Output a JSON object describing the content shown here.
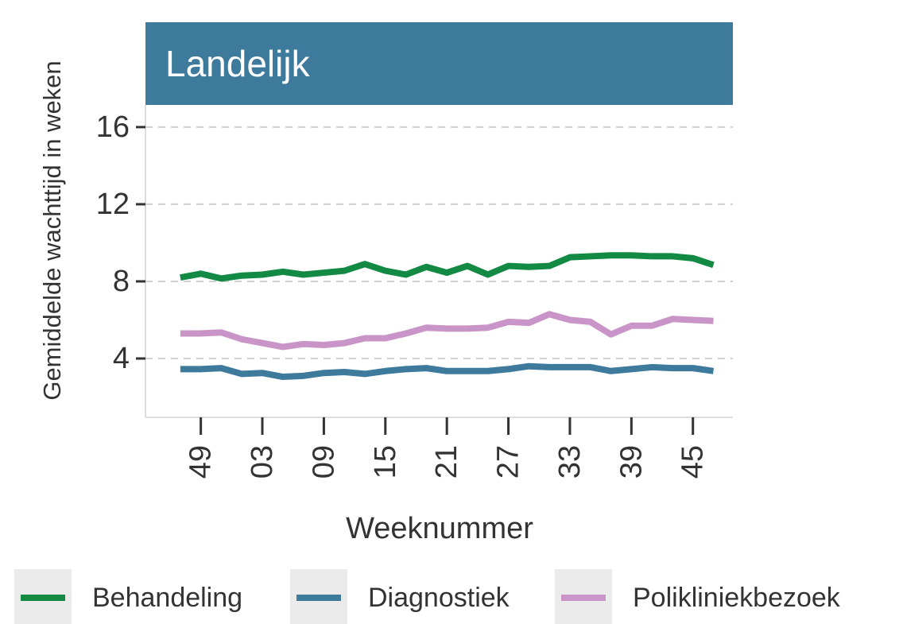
{
  "chart_data": {
    "type": "line",
    "title": "Landelijk",
    "ylabel": "Gemiddelde wachttijd in weken",
    "xlabel": "Weeknummer",
    "x": [
      47,
      49,
      51,
      53,
      55,
      57,
      59,
      61,
      63,
      65,
      67,
      69,
      71,
      73,
      75,
      77,
      79,
      81,
      83,
      85,
      87,
      89,
      91,
      93,
      95,
      97,
      99
    ],
    "series": [
      {
        "name": "Behandeling",
        "color": "#138a44",
        "values": [
          8.2,
          8.4,
          8.15,
          8.3,
          8.35,
          8.5,
          8.35,
          8.45,
          8.55,
          8.9,
          8.55,
          8.35,
          8.75,
          8.45,
          8.8,
          8.35,
          8.8,
          8.75,
          8.8,
          9.25,
          9.3,
          9.35,
          9.35,
          9.3,
          9.3,
          9.2,
          8.85
        ]
      },
      {
        "name": "Diagnostiek",
        "color": "#3d7a9c",
        "values": [
          3.45,
          3.45,
          3.5,
          3.2,
          3.25,
          3.05,
          3.1,
          3.25,
          3.3,
          3.2,
          3.35,
          3.45,
          3.5,
          3.35,
          3.35,
          3.35,
          3.45,
          3.6,
          3.55,
          3.55,
          3.55,
          3.35,
          3.45,
          3.55,
          3.5,
          3.5,
          3.35
        ]
      },
      {
        "name": "Polikliniekbezoek",
        "color": "#c994c7",
        "values": [
          5.3,
          5.3,
          5.35,
          5.0,
          4.8,
          4.6,
          4.75,
          4.7,
          4.8,
          5.05,
          5.05,
          5.3,
          5.6,
          5.55,
          5.55,
          5.6,
          5.9,
          5.85,
          6.3,
          6.0,
          5.9,
          5.25,
          5.7,
          5.7,
          6.05,
          6.0,
          5.95
        ]
      }
    ],
    "xlim": [
      43.6,
      100.9
    ],
    "xticks": [
      49,
      {
        "value": 55,
        "label": "03"
      },
      {
        "value": 61,
        "label": "09"
      },
      {
        "value": 67,
        "label": "15"
      },
      {
        "value": 73,
        "label": "21"
      },
      {
        "value": 79,
        "label": "27"
      },
      {
        "value": 85,
        "label": "33"
      },
      {
        "value": 91,
        "label": "39"
      },
      {
        "value": 97,
        "label": "45"
      }
    ],
    "ylim": [
      0.95,
      17.15
    ],
    "yticks": [
      4,
      8,
      12,
      16
    ],
    "grid": true,
    "strip_color": "#3d7a9c",
    "legend": "bottom"
  }
}
